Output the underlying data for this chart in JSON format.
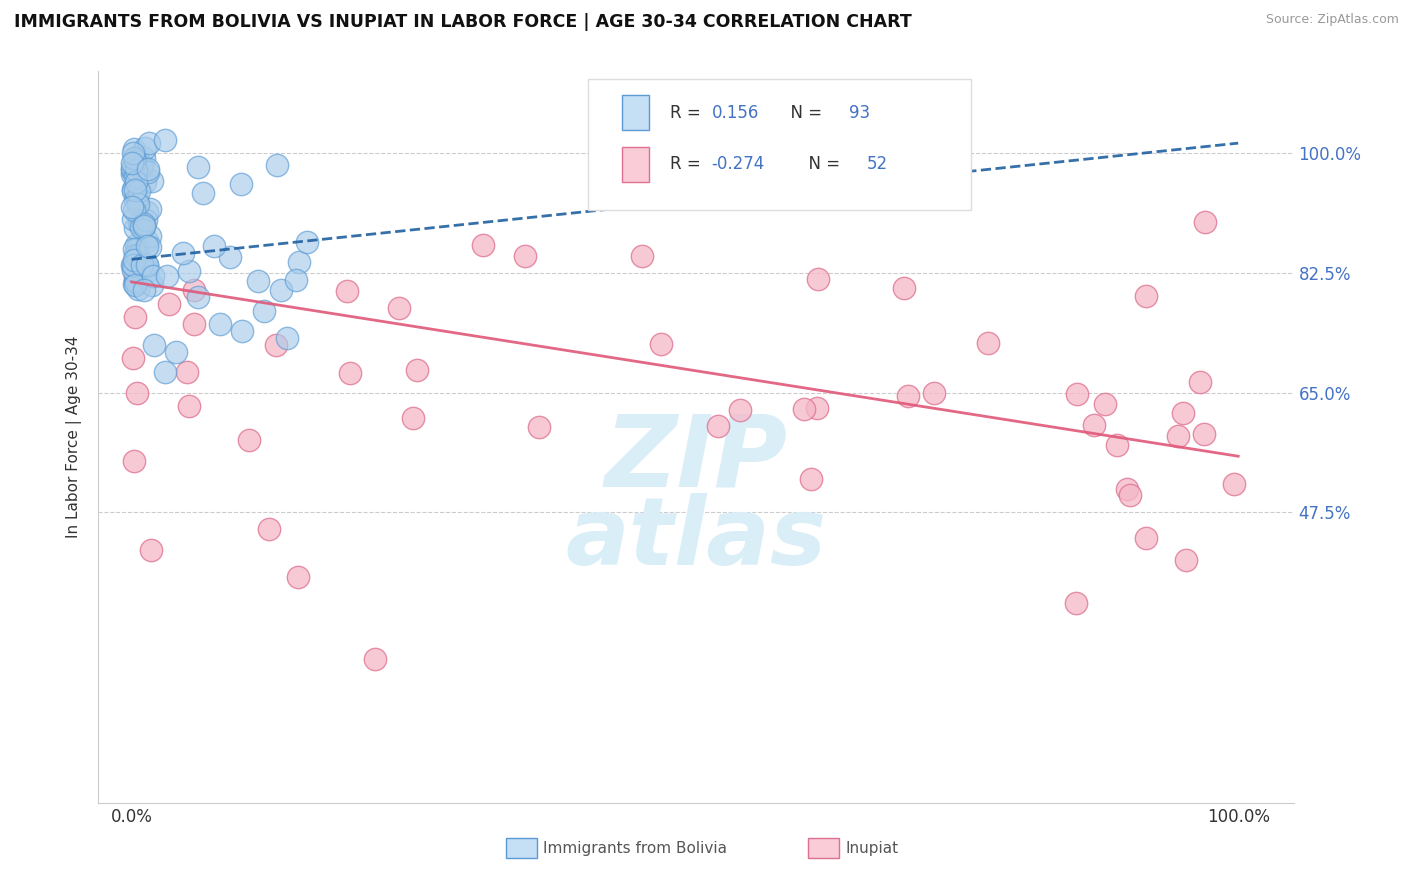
{
  "title": "IMMIGRANTS FROM BOLIVIA VS INUPIAT IN LABOR FORCE | AGE 30-34 CORRELATION CHART",
  "source": "Source: ZipAtlas.com",
  "ylabel": "In Labor Force | Age 30-34",
  "xlim": [
    -0.03,
    1.05
  ],
  "ylim": [
    0.05,
    1.12
  ],
  "xtick_labels": [
    "0.0%",
    "100.0%"
  ],
  "xtick_positions": [
    0.0,
    1.0
  ],
  "ytick_labels": [
    "100.0%",
    "82.5%",
    "65.0%",
    "47.5%"
  ],
  "ytick_positions": [
    1.0,
    0.825,
    0.65,
    0.475
  ],
  "bolivia_R": "0.156",
  "bolivia_N": "93",
  "inupiat_R": "-0.274",
  "inupiat_N": "52",
  "bolivia_fill": "#a8ccea",
  "bolivia_edge": "#5b9bd5",
  "inupiat_fill": "#f4b8c8",
  "inupiat_edge": "#e07090",
  "bolivia_trend_color": "#2060a0",
  "inupiat_trend_color": "#e05878",
  "legend_fill_bolivia": "#c5dff5",
  "legend_fill_inupiat": "#f9ccd8",
  "ytick_color": "#4472c4",
  "watermark_color": "#daeef8",
  "grid_color": "#cccccc"
}
